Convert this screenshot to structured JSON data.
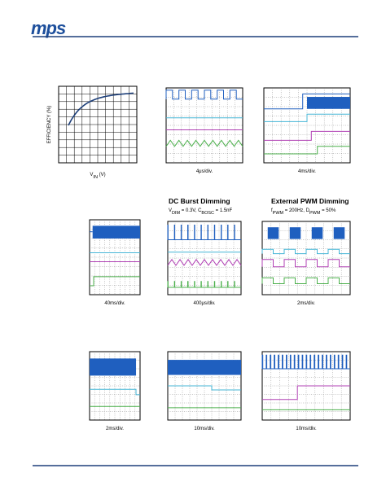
{
  "header": {
    "logo": "mps"
  },
  "efficiency_plot": {
    "y_label": "EFFICIENCY (%)",
    "x_label": [
      {
        "t": "V"
      },
      {
        "s": "IN"
      },
      {
        "t": " (V)"
      }
    ]
  },
  "sections": [
    {
      "title": "DC Burst Dimming",
      "subtitle": [
        {
          "t": "V"
        },
        {
          "s": "DIM"
        },
        {
          "t": " = 0.3V, C"
        },
        {
          "s": "BOSC"
        },
        {
          "t": " = 1.5nF"
        }
      ]
    },
    {
      "title": "External PWM Dimming",
      "subtitle": [
        {
          "t": "f"
        },
        {
          "s": "PWM"
        },
        {
          "t": " = 200Hz, D"
        },
        {
          "s": "PWM"
        },
        {
          "t": " = 50%"
        }
      ]
    }
  ],
  "scope_captions": [
    "4μs/div.",
    "4ms/div.",
    "40ms/div.",
    "400μs/div.",
    "2ms/div.",
    "2ms/div.",
    "10ms/div.",
    "10ms/div."
  ]
}
